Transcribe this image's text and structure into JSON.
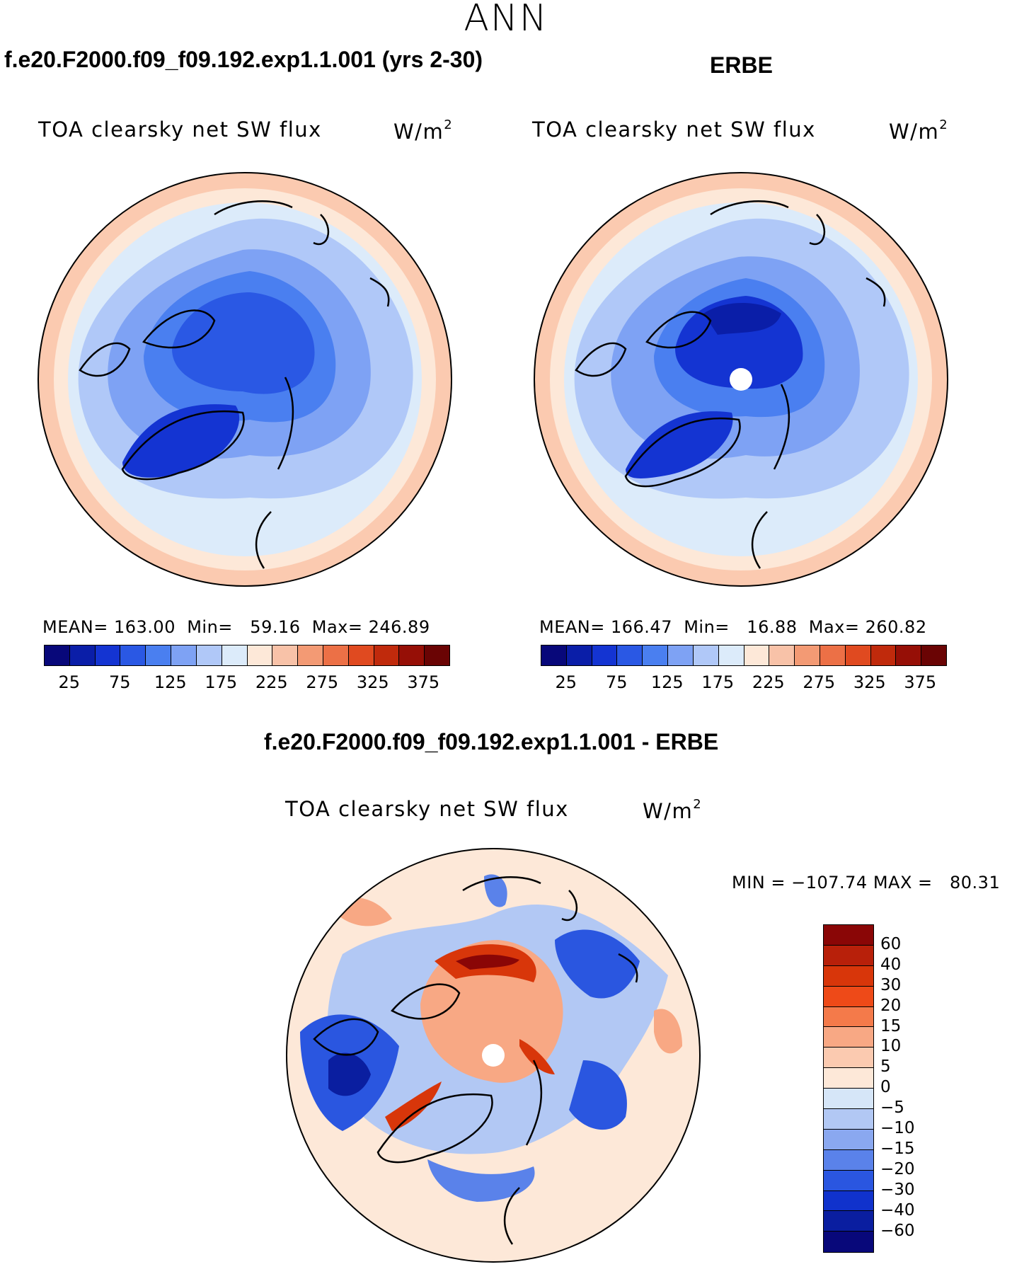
{
  "season": "ANN",
  "panels": [
    {
      "case": "f.e20.F2000.f09_f09.192.exp1.1.001 (yrs 2-30)",
      "field": "TOA clearsky net SW flux",
      "units_base": "W/m",
      "units_sup": "2",
      "stats": "MEAN= 163.00  Min=   59.16  Max= 246.89"
    },
    {
      "case": "ERBE",
      "field": "TOA clearsky net SW flux",
      "units_base": "W/m",
      "units_sup": "2",
      "stats": "MEAN= 166.47  Min=   16.88  Max= 260.82"
    },
    {
      "case": "f.e20.F2000.f09_f09.192.exp1.1.001 - ERBE",
      "field": "TOA clearsky net SW flux",
      "units_base": "W/m",
      "units_sup": "2",
      "stats": "MIN = −107.74 MAX =   80.31"
    }
  ],
  "abs_colorbar": {
    "colors": [
      "#08087a",
      "#0a1ea8",
      "#1434d2",
      "#2a58e4",
      "#4a7ff0",
      "#7ea2f4",
      "#b0c8f8",
      "#dcebfa",
      "#fde8d8",
      "#f8c2a8",
      "#f39a74",
      "#ec7046",
      "#e04a20",
      "#c02a0c",
      "#960f06",
      "#6a0404"
    ],
    "ticks": [
      "25",
      "75",
      "125",
      "175",
      "225",
      "275",
      "325",
      "375"
    ]
  },
  "diff_colorbar": {
    "colors": [
      "#8a0606",
      "#b8200a",
      "#d8360a",
      "#ee4a18",
      "#f47a4a",
      "#f8a884",
      "#fbcab0",
      "#fde8d8",
      "#d6e6f8",
      "#b2c8f4",
      "#8aa8f0",
      "#5a82ea",
      "#2a56e0",
      "#1032cc",
      "#0a1ea0",
      "#08087a"
    ],
    "ticks": [
      "60",
      "40",
      "30",
      "20",
      "15",
      "10",
      "5",
      "0",
      "−5",
      "−10",
      "−15",
      "−20",
      "−30",
      "−40",
      "−60"
    ]
  }
}
